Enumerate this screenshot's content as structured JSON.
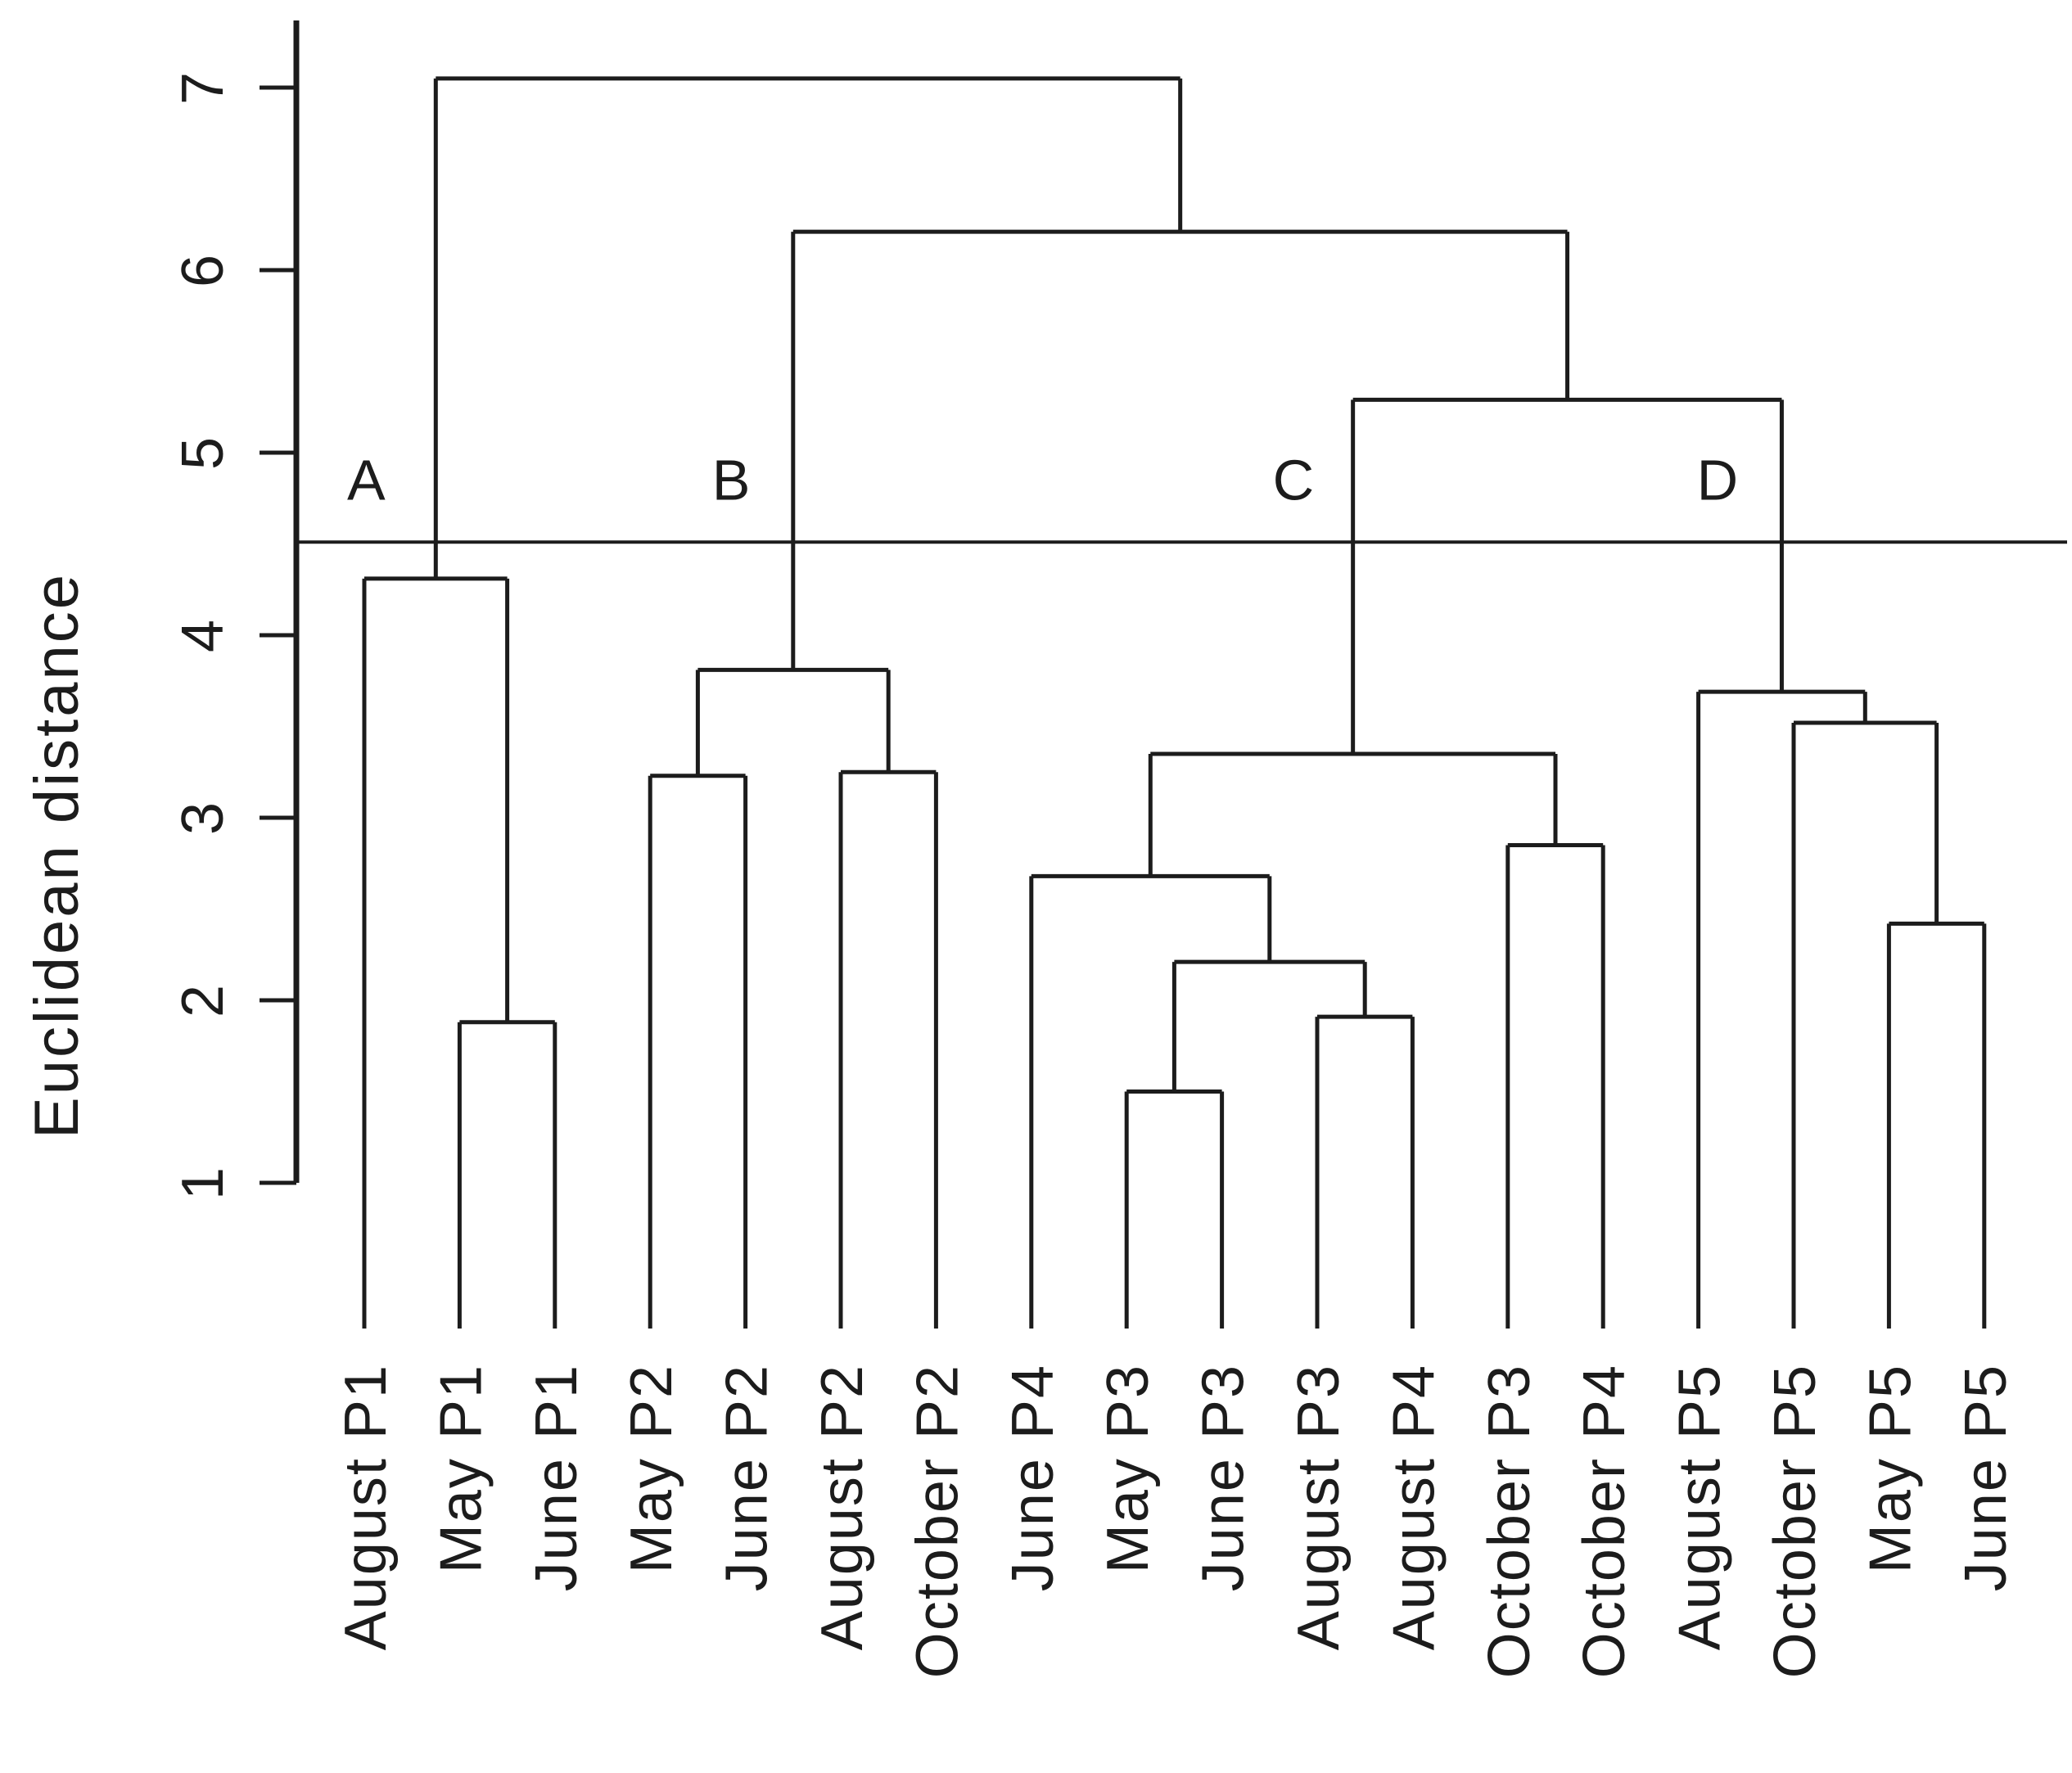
{
  "chart_data": {
    "type": "dendrogram",
    "title": "",
    "ylabel": "Euclidean distance",
    "yticks": [
      1,
      2,
      3,
      4,
      5,
      6,
      7
    ],
    "ylim": [
      1,
      7.4
    ],
    "grid": false,
    "cut_line_height": 4.51,
    "leaves": [
      "August P1",
      "May P1",
      "June P1",
      "May P2",
      "June P2",
      "August P2",
      "October P2",
      "June P4",
      "May P3",
      "June P3",
      "August P3",
      "August P4",
      "October P3",
      "October P4",
      "August P5",
      "October P5",
      "May P5",
      "June P5"
    ],
    "tree": {
      "h": 7.05,
      "children": [
        {
          "h": 4.31,
          "children": [
            "August P1",
            {
              "h": 1.88,
              "children": [
                "May P1",
                "June P1"
              ]
            }
          ]
        },
        {
          "h": 6.21,
          "children": [
            {
              "h": 3.81,
              "children": [
                {
                  "h": 3.23,
                  "children": [
                    "May P2",
                    "June P2"
                  ]
                },
                {
                  "h": 3.25,
                  "children": [
                    "August P2",
                    "October P2"
                  ]
                }
              ]
            },
            {
              "h": 5.29,
              "children": [
                {
                  "h": 3.35,
                  "children": [
                    {
                      "h": 2.68,
                      "children": [
                        "June P4",
                        {
                          "h": 2.21,
                          "children": [
                            {
                              "h": 1.5,
                              "children": [
                                "May P3",
                                "June P3"
                              ]
                            },
                            {
                              "h": 1.91,
                              "children": [
                                "August P3",
                                "August P4"
                              ]
                            }
                          ]
                        }
                      ]
                    },
                    {
                      "h": 2.85,
                      "children": [
                        "October P3",
                        "October P4"
                      ]
                    }
                  ]
                },
                {
                  "h": 3.69,
                  "children": [
                    "August P5",
                    {
                      "h": 3.52,
                      "children": [
                        "October P5",
                        {
                          "h": 2.42,
                          "children": [
                            "May P5",
                            "June P5"
                          ]
                        }
                      ]
                    }
                  ]
                }
              ]
            }
          ]
        }
      ]
    },
    "cluster_labels": [
      {
        "text": "A",
        "x_leaf": 0.02,
        "y": 4.85
      },
      {
        "text": "B",
        "x_leaf": 3.85,
        "y": 4.85
      },
      {
        "text": "C",
        "x_leaf": 9.75,
        "y": 4.85
      },
      {
        "text": "D",
        "x_leaf": 14.2,
        "y": 4.85
      }
    ],
    "line_color": "#1c1c1c"
  }
}
